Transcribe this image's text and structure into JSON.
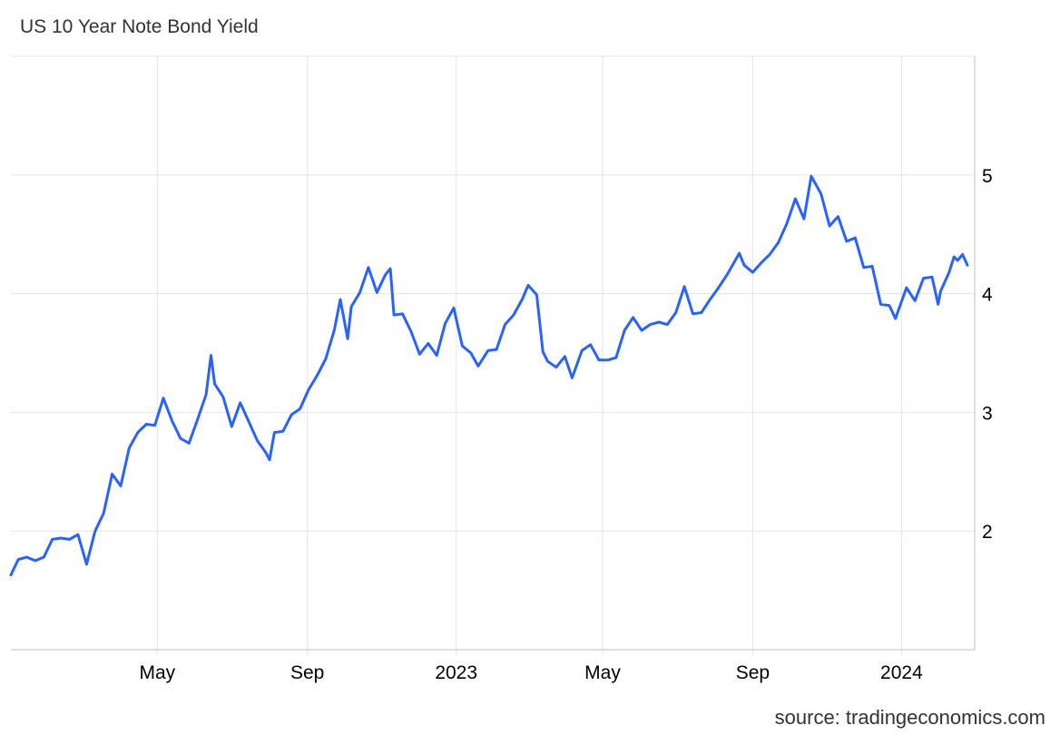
{
  "title": "US 10 Year Note Bond Yield",
  "source": "source: tradingeconomics.com",
  "colors": {
    "line": "#2962ff",
    "grid": "#e6e6e6",
    "text": "#333333"
  },
  "chart_data": {
    "type": "line",
    "title": "US 10 Year Note Bond Yield",
    "xlabel": "",
    "ylabel": "",
    "x_ticks": [
      "May",
      "Sep",
      "2023",
      "May",
      "Sep",
      "2024"
    ],
    "y_ticks": [
      2,
      3,
      4,
      5
    ],
    "ylim": [
      1.0,
      6.0
    ],
    "xlim": [
      "2022-01-01",
      "2024-02-24"
    ],
    "grid": true,
    "legend": "none",
    "series": [
      {
        "points": [
          [
            "2022-01-01",
            1.63
          ],
          [
            "2022-01-07",
            1.76
          ],
          [
            "2022-01-14",
            1.78
          ],
          [
            "2022-01-21",
            1.75
          ],
          [
            "2022-01-28",
            1.78
          ],
          [
            "2022-02-04",
            1.93
          ],
          [
            "2022-02-11",
            1.94
          ],
          [
            "2022-02-18",
            1.93
          ],
          [
            "2022-02-25",
            1.97
          ],
          [
            "2022-03-04",
            1.72
          ],
          [
            "2022-03-11",
            2.0
          ],
          [
            "2022-03-18",
            2.15
          ],
          [
            "2022-03-25",
            2.48
          ],
          [
            "2022-04-01",
            2.38
          ],
          [
            "2022-04-08",
            2.7
          ],
          [
            "2022-04-15",
            2.83
          ],
          [
            "2022-04-22",
            2.9
          ],
          [
            "2022-04-29",
            2.89
          ],
          [
            "2022-05-06",
            3.12
          ],
          [
            "2022-05-13",
            2.93
          ],
          [
            "2022-05-20",
            2.78
          ],
          [
            "2022-05-27",
            2.74
          ],
          [
            "2022-06-03",
            2.94
          ],
          [
            "2022-06-10",
            3.15
          ],
          [
            "2022-06-14",
            3.48
          ],
          [
            "2022-06-17",
            3.24
          ],
          [
            "2022-06-24",
            3.13
          ],
          [
            "2022-07-01",
            2.88
          ],
          [
            "2022-07-08",
            3.08
          ],
          [
            "2022-07-15",
            2.92
          ],
          [
            "2022-07-22",
            2.76
          ],
          [
            "2022-07-29",
            2.66
          ],
          [
            "2022-08-01",
            2.6
          ],
          [
            "2022-08-05",
            2.83
          ],
          [
            "2022-08-12",
            2.84
          ],
          [
            "2022-08-19",
            2.98
          ],
          [
            "2022-08-26",
            3.03
          ],
          [
            "2022-09-02",
            3.19
          ],
          [
            "2022-09-09",
            3.31
          ],
          [
            "2022-09-16",
            3.45
          ],
          [
            "2022-09-23",
            3.69
          ],
          [
            "2022-09-28",
            3.95
          ],
          [
            "2022-10-04",
            3.62
          ],
          [
            "2022-10-07",
            3.89
          ],
          [
            "2022-10-14",
            4.01
          ],
          [
            "2022-10-21",
            4.22
          ],
          [
            "2022-10-25",
            4.1
          ],
          [
            "2022-10-28",
            4.01
          ],
          [
            "2022-11-04",
            4.16
          ],
          [
            "2022-11-08",
            4.21
          ],
          [
            "2022-11-11",
            3.82
          ],
          [
            "2022-11-18",
            3.83
          ],
          [
            "2022-11-25",
            3.68
          ],
          [
            "2022-12-02",
            3.49
          ],
          [
            "2022-12-09",
            3.58
          ],
          [
            "2022-12-16",
            3.48
          ],
          [
            "2022-12-23",
            3.75
          ],
          [
            "2022-12-30",
            3.88
          ],
          [
            "2023-01-06",
            3.56
          ],
          [
            "2023-01-13",
            3.5
          ],
          [
            "2023-01-19",
            3.39
          ],
          [
            "2023-01-27",
            3.52
          ],
          [
            "2023-02-03",
            3.53
          ],
          [
            "2023-02-10",
            3.74
          ],
          [
            "2023-02-17",
            3.82
          ],
          [
            "2023-02-24",
            3.95
          ],
          [
            "2023-03-01",
            4.07
          ],
          [
            "2023-03-08",
            3.99
          ],
          [
            "2023-03-13",
            3.51
          ],
          [
            "2023-03-17",
            3.43
          ],
          [
            "2023-03-24",
            3.38
          ],
          [
            "2023-03-31",
            3.47
          ],
          [
            "2023-04-06",
            3.29
          ],
          [
            "2023-04-14",
            3.52
          ],
          [
            "2023-04-21",
            3.57
          ],
          [
            "2023-04-28",
            3.44
          ],
          [
            "2023-05-05",
            3.44
          ],
          [
            "2023-05-12",
            3.46
          ],
          [
            "2023-05-19",
            3.69
          ],
          [
            "2023-05-26",
            3.8
          ],
          [
            "2023-06-02",
            3.69
          ],
          [
            "2023-06-09",
            3.74
          ],
          [
            "2023-06-16",
            3.76
          ],
          [
            "2023-06-23",
            3.74
          ],
          [
            "2023-06-30",
            3.84
          ],
          [
            "2023-07-07",
            4.06
          ],
          [
            "2023-07-14",
            3.83
          ],
          [
            "2023-07-21",
            3.84
          ],
          [
            "2023-07-28",
            3.95
          ],
          [
            "2023-08-04",
            4.05
          ],
          [
            "2023-08-11",
            4.16
          ],
          [
            "2023-08-21",
            4.34
          ],
          [
            "2023-08-25",
            4.24
          ],
          [
            "2023-09-01",
            4.18
          ],
          [
            "2023-09-08",
            4.26
          ],
          [
            "2023-09-15",
            4.33
          ],
          [
            "2023-09-22",
            4.43
          ],
          [
            "2023-09-29",
            4.59
          ],
          [
            "2023-10-06",
            4.8
          ],
          [
            "2023-10-13",
            4.63
          ],
          [
            "2023-10-19",
            4.99
          ],
          [
            "2023-10-27",
            4.84
          ],
          [
            "2023-11-03",
            4.57
          ],
          [
            "2023-11-10",
            4.65
          ],
          [
            "2023-11-17",
            4.44
          ],
          [
            "2023-11-24",
            4.47
          ],
          [
            "2023-12-01",
            4.22
          ],
          [
            "2023-12-08",
            4.23
          ],
          [
            "2023-12-15",
            3.91
          ],
          [
            "2023-12-22",
            3.9
          ],
          [
            "2023-12-27",
            3.79
          ],
          [
            "2024-01-05",
            4.05
          ],
          [
            "2024-01-12",
            3.94
          ],
          [
            "2024-01-19",
            4.13
          ],
          [
            "2024-01-26",
            4.14
          ],
          [
            "2024-01-31",
            3.91
          ],
          [
            "2024-02-02",
            4.02
          ],
          [
            "2024-02-09",
            4.18
          ],
          [
            "2024-02-13",
            4.31
          ],
          [
            "2024-02-16",
            4.28
          ],
          [
            "2024-02-20",
            4.33
          ],
          [
            "2024-02-24",
            4.24
          ]
        ]
      }
    ]
  }
}
